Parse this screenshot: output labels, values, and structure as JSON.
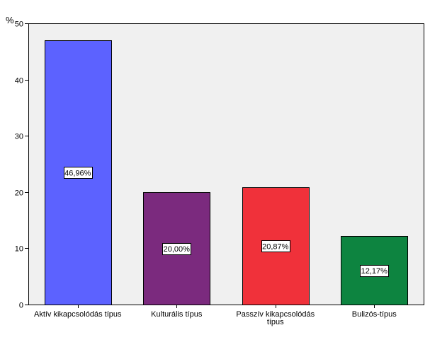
{
  "chart_data": {
    "type": "bar",
    "ylabel": "%",
    "ylim": [
      0,
      50
    ],
    "yticks": [
      0,
      10,
      20,
      30,
      40,
      50
    ],
    "grid": false,
    "categories": [
      [
        "Aktív kikapcsolódás típus"
      ],
      [
        "Kulturális típus"
      ],
      [
        "Passzív kikapcsolódás",
        "típus"
      ],
      [
        "Bulizós-típus"
      ]
    ],
    "values": [
      46.96,
      20.0,
      20.87,
      12.17
    ],
    "data_labels": [
      "46,96%",
      "20,00%",
      "20,87%",
      "12,17%"
    ],
    "colors": [
      "#5c62ff",
      "#7b2a7e",
      "#f0313a",
      "#0d8440"
    ],
    "plot_background": "#f0f0f0"
  }
}
